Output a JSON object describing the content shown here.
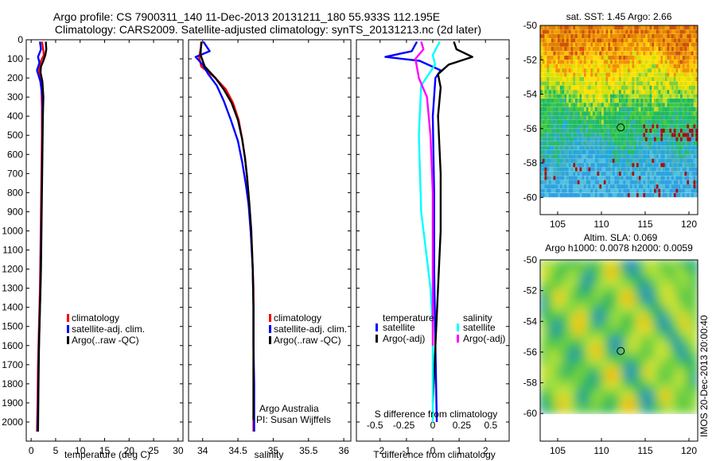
{
  "figure": {
    "title_line1": "Argo profile: CS 7900311_140 11-Dec-2013 20131211_180 55.933S 112.195E",
    "title_line2": "Climatology: CARS2009. Satellite-adjusted climatology: synTS_20131213.nc (2d later)",
    "credit_line1": "Argo Australia",
    "credit_line2": "PI: Susan Wijffels",
    "side_stamp": "IMOS 20-Dec-2013 20:00:40"
  },
  "colors": {
    "climatology": "#ff0000",
    "satellite": "#0000ff",
    "argo": "#000000",
    "salinity_satellite": "#00ffff",
    "salinity_argo": "#ff00ff"
  },
  "chart_data": [
    {
      "id": "temperature",
      "type": "line",
      "xlabel": "temperature (deg C)",
      "ylabel": "",
      "xlim": [
        -1,
        31
      ],
      "ylim": [
        2100,
        0
      ],
      "xticks": [
        0,
        5,
        10,
        15,
        20,
        25,
        30
      ],
      "yticks": [
        0,
        100,
        200,
        300,
        400,
        500,
        600,
        700,
        800,
        900,
        1000,
        1100,
        1200,
        1300,
        1400,
        1500,
        1600,
        1700,
        1800,
        1900,
        2000
      ],
      "legend": {
        "position": "lower-center",
        "entries": [
          "climatology",
          "satellite-adj. clim.",
          "Argo(..raw -QC)"
        ]
      },
      "series": [
        {
          "name": "climatology",
          "color": "#ff0000",
          "points": [
            [
              2.2,
              10
            ],
            [
              2.4,
              40
            ],
            [
              2.6,
              80
            ],
            [
              2.0,
              110
            ],
            [
              1.6,
              150
            ],
            [
              1.8,
              200
            ],
            [
              2.1,
              260
            ],
            [
              2.2,
              350
            ],
            [
              2.2,
              500
            ],
            [
              2.1,
              700
            ],
            [
              2.0,
              900
            ],
            [
              1.9,
              1100
            ],
            [
              1.8,
              1300
            ],
            [
              1.6,
              1500
            ],
            [
              1.4,
              1700
            ],
            [
              1.3,
              1900
            ],
            [
              1.2,
              2050
            ]
          ]
        },
        {
          "name": "satellite-adj. clim.",
          "color": "#0000ff",
          "points": [
            [
              1.8,
              10
            ],
            [
              2.0,
              50
            ],
            [
              1.4,
              90
            ],
            [
              1.7,
              120
            ],
            [
              1.2,
              160
            ],
            [
              1.9,
              220
            ],
            [
              2.3,
              300
            ],
            [
              2.3,
              400
            ],
            [
              2.3,
              500
            ],
            [
              2.2,
              700
            ],
            [
              2.1,
              900
            ],
            [
              2.0,
              1100
            ],
            [
              1.9,
              1300
            ],
            [
              1.7,
              1500
            ],
            [
              1.5,
              1700
            ],
            [
              1.4,
              1900
            ],
            [
              1.3,
              2050
            ]
          ]
        },
        {
          "name": "Argo(..raw -QC)",
          "color": "#000000",
          "points": [
            [
              3.0,
              10
            ],
            [
              3.1,
              50
            ],
            [
              2.9,
              80
            ],
            [
              2.5,
              110
            ],
            [
              2.0,
              140
            ],
            [
              1.9,
              170
            ],
            [
              2.3,
              220
            ],
            [
              2.5,
              300
            ],
            [
              2.4,
              400
            ],
            [
              2.3,
              600
            ],
            [
              2.2,
              800
            ],
            [
              2.1,
              1000
            ],
            [
              2.0,
              1200
            ],
            [
              1.8,
              1400
            ],
            [
              1.6,
              1600
            ],
            [
              1.5,
              1800
            ],
            [
              1.4,
              2050
            ]
          ]
        }
      ]
    },
    {
      "id": "salinity",
      "type": "line",
      "xlabel": "salinity",
      "ylabel": "",
      "xlim": [
        33.8,
        36.1
      ],
      "ylim": [
        2100,
        0
      ],
      "xticks": [
        34,
        34.5,
        35,
        35.5,
        36
      ],
      "xtick_labels": [
        "34",
        "34.5",
        "35",
        "35.5",
        "36"
      ],
      "legend": {
        "position": "lower-right",
        "entries": [
          "climatology",
          "satellite-adj. clim.",
          "Argo(..raw -QC)"
        ]
      },
      "series": [
        {
          "name": "climatology",
          "color": "#ff0000",
          "points": [
            [
              33.99,
              10
            ],
            [
              33.95,
              90
            ],
            [
              33.98,
              140
            ],
            [
              34.18,
              200
            ],
            [
              34.33,
              260
            ],
            [
              34.43,
              330
            ],
            [
              34.51,
              420
            ],
            [
              34.56,
              520
            ],
            [
              34.6,
              620
            ],
            [
              34.63,
              720
            ],
            [
              34.65,
              820
            ],
            [
              34.67,
              950
            ],
            [
              34.7,
              1100
            ],
            [
              34.72,
              1300
            ],
            [
              34.72,
              1500
            ],
            [
              34.72,
              1700
            ],
            [
              34.72,
              1900
            ],
            [
              34.72,
              2050
            ]
          ]
        },
        {
          "name": "satellite-adj. clim.",
          "color": "#0000ff",
          "points": [
            [
              34.01,
              10
            ],
            [
              34.1,
              60
            ],
            [
              33.9,
              90
            ],
            [
              34.0,
              130
            ],
            [
              34.08,
              180
            ],
            [
              34.2,
              240
            ],
            [
              34.3,
              320
            ],
            [
              34.4,
              420
            ],
            [
              34.5,
              530
            ],
            [
              34.56,
              640
            ],
            [
              34.61,
              750
            ],
            [
              34.65,
              860
            ],
            [
              34.68,
              1000
            ],
            [
              34.71,
              1200
            ],
            [
              34.72,
              1400
            ],
            [
              34.72,
              1600
            ],
            [
              34.73,
              1800
            ],
            [
              34.73,
              2050
            ]
          ]
        },
        {
          "name": "Argo(..raw -QC)",
          "color": "#000000",
          "points": [
            [
              33.98,
              10
            ],
            [
              33.97,
              80
            ],
            [
              34.03,
              140
            ],
            [
              34.18,
              200
            ],
            [
              34.3,
              260
            ],
            [
              34.41,
              330
            ],
            [
              34.5,
              420
            ],
            [
              34.56,
              520
            ],
            [
              34.6,
              620
            ],
            [
              34.63,
              720
            ],
            [
              34.66,
              850
            ],
            [
              34.69,
              1000
            ],
            [
              34.71,
              1200
            ],
            [
              34.72,
              1400
            ],
            [
              34.72,
              1600
            ],
            [
              34.72,
              1800
            ],
            [
              34.72,
              1990
            ]
          ]
        }
      ]
    },
    {
      "id": "difference",
      "type": "line",
      "xlabel": "T difference from climatology",
      "top_label": "S difference from climatology",
      "xlim": [
        -2.9,
        2.9
      ],
      "ylim": [
        2100,
        0
      ],
      "xticks": [
        -2,
        -1,
        0,
        1,
        2
      ],
      "top_ticks": [
        -0.5,
        -0.25,
        0,
        0.25,
        0.5
      ],
      "top_tick_labels": [
        "-0.5",
        "-0.25",
        "0",
        "0.25",
        "0.5"
      ],
      "legend_temperature_title": "temperature",
      "legend_salinity_title": "salinity",
      "legend": {
        "position": "lower-center",
        "entries": [
          "satellite",
          "Argo(-adj)",
          "satellite",
          "Argo(-adj)"
        ]
      },
      "series": [
        {
          "name": "T satellite",
          "color": "#0000ff",
          "points": [
            [
              -0.6,
              10
            ],
            [
              -0.8,
              60
            ],
            [
              -1.8,
              90
            ],
            [
              -0.5,
              110
            ],
            [
              0.3,
              160
            ],
            [
              0.1,
              200
            ],
            [
              0.0,
              400
            ],
            [
              0.05,
              800
            ],
            [
              0.05,
              1200
            ],
            [
              0.1,
              1600
            ],
            [
              0.15,
              2000
            ]
          ]
        },
        {
          "name": "T Argo(-adj)",
          "color": "#000000",
          "points": [
            [
              0.8,
              10
            ],
            [
              0.9,
              50
            ],
            [
              1.5,
              90
            ],
            [
              0.6,
              130
            ],
            [
              0.2,
              180
            ],
            [
              0.3,
              250
            ],
            [
              0.2,
              400
            ],
            [
              0.3,
              700
            ],
            [
              0.3,
              1000
            ],
            [
              0.2,
              1300
            ],
            [
              0.1,
              1600
            ],
            [
              0.0,
              1900
            ]
          ]
        },
        {
          "name": "S satellite",
          "color": "#00ffff",
          "points": [
            [
              0.06,
              10
            ],
            [
              0.0,
              80
            ],
            [
              0.02,
              130
            ],
            [
              -0.1,
              240
            ],
            [
              -0.12,
              500
            ],
            [
              -0.1,
              900
            ],
            [
              -0.06,
              1100
            ],
            [
              -0.02,
              1300
            ],
            [
              0.0,
              1500
            ],
            [
              0.0,
              1700
            ],
            [
              0.0,
              2000
            ]
          ]
        },
        {
          "name": "S Argo(-adj)",
          "color": "#ff00ff",
          "points": [
            [
              -0.1,
              10
            ],
            [
              -0.08,
              50
            ],
            [
              -0.15,
              100
            ],
            [
              -0.12,
              200
            ],
            [
              -0.05,
              300
            ],
            [
              -0.02,
              500
            ],
            [
              0.0,
              800
            ],
            [
              0.0,
              1200
            ],
            [
              0.0,
              1600
            ]
          ]
        }
      ]
    },
    {
      "id": "sst_map",
      "type": "heatmap",
      "title": "sat. SST: 1.45 Argo: 2.66",
      "xlim": [
        103,
        121
      ],
      "ylim": [
        -61,
        -50
      ],
      "xticks": [
        105,
        110,
        115,
        120
      ],
      "yticks": [
        -50,
        -52,
        -54,
        -56,
        -58,
        -60
      ],
      "marker": {
        "lon": 112.2,
        "lat": -55.93
      }
    },
    {
      "id": "sla_map",
      "type": "heatmap",
      "title": "Altim. SLA: 0.069",
      "subtitle": "Argo h1000: 0.0078 h2000: 0.0059",
      "xlim": [
        103,
        121
      ],
      "ylim": [
        -61.8,
        -50
      ],
      "xticks": [
        105,
        110,
        115,
        120
      ],
      "yticks": [
        -50,
        -52,
        -54,
        -56,
        -58,
        -60
      ],
      "marker": {
        "lon": 112.2,
        "lat": -55.93
      }
    }
  ]
}
